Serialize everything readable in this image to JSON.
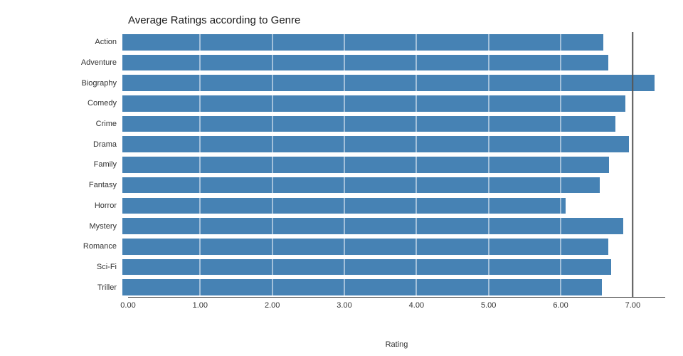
{
  "chart_data": {
    "type": "bar",
    "orientation": "horizontal",
    "title": "Average Ratings according to Genre",
    "xlabel": "Rating",
    "ylabel": "",
    "categories": [
      "Action",
      "Adventure",
      "Biography",
      "Comedy",
      "Crime",
      "Drama",
      "Family",
      "Fantasy",
      "Horror",
      "Mystery",
      "Romance",
      "Sci-Fi",
      "Triller"
    ],
    "values": [
      6.6,
      6.67,
      7.3,
      6.9,
      6.77,
      6.95,
      6.68,
      6.55,
      6.08,
      6.87,
      6.67,
      6.71,
      6.58
    ],
    "xlim": [
      0,
      7.45
    ],
    "xticks": [
      0,
      1,
      2,
      3,
      4,
      5,
      6,
      7
    ],
    "xtick_labels": [
      "0.00",
      "1.00",
      "2.00",
      "3.00",
      "4.00",
      "5.00",
      "6.00",
      "7.00"
    ],
    "grid": true,
    "gridline_color": "#ffffff",
    "reference_line_x": 7.0,
    "bar_color": "#4682b4",
    "axis_color": "#444444",
    "legend": "none"
  }
}
